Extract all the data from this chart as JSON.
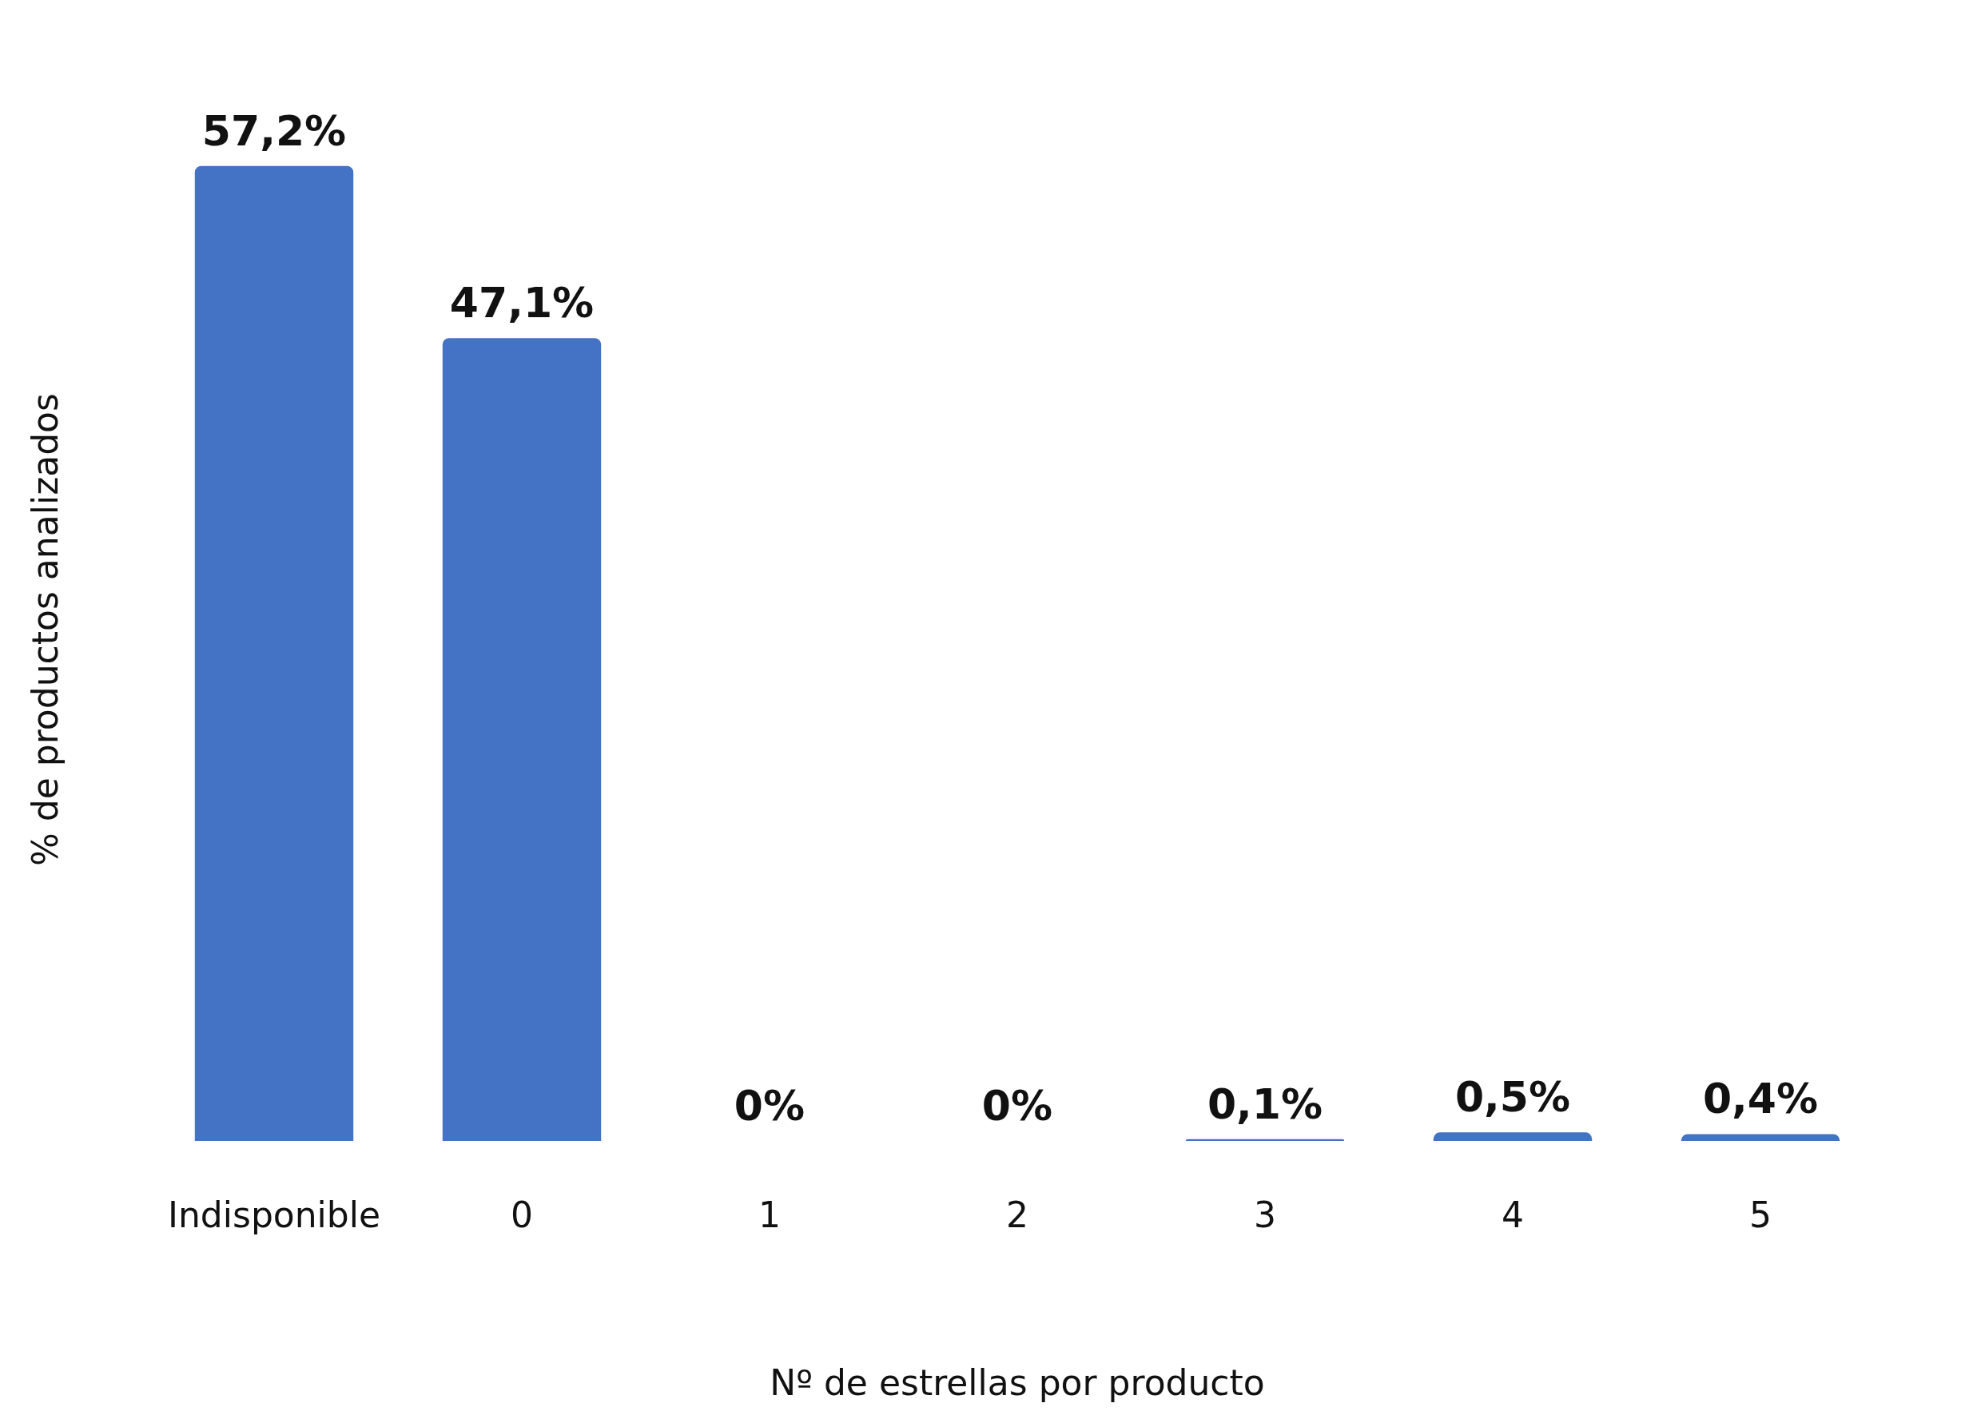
{
  "chart_data": {
    "type": "bar",
    "xlabel": "Nº de estrellas por producto",
    "ylabel": "% de productos analizados",
    "categories": [
      "Indisponible",
      "0",
      "1",
      "2",
      "3",
      "4",
      "5"
    ],
    "values": [
      57.2,
      47.1,
      0,
      0,
      0.1,
      0.5,
      0.4
    ],
    "value_labels": [
      "57,2%",
      "47,1%",
      "0%",
      "0%",
      "0,1%",
      "0,5%",
      "0,4%"
    ],
    "color": "#4472c4"
  }
}
